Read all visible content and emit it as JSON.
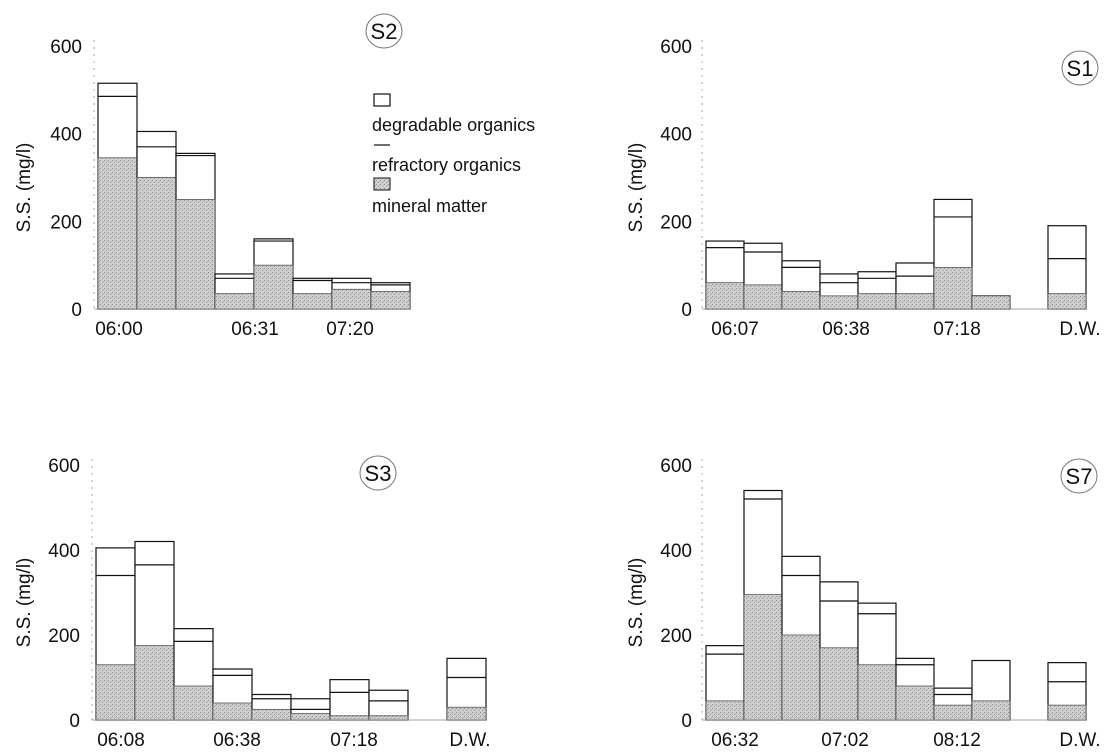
{
  "chart_data": [
    {
      "type": "bar",
      "stacked": true,
      "panel": "S2",
      "ylabel": "S.S. (mg/l)",
      "ylim": [
        0,
        600
      ],
      "yticks": [
        0,
        200,
        400,
        600
      ],
      "xticks": [
        "06:00",
        "06:31",
        "07:20"
      ],
      "series": [
        {
          "name": "mineral matter",
          "values": [
            345,
            300,
            250,
            35,
            100,
            35,
            45,
            40
          ]
        },
        {
          "name": "refractory organics",
          "values": [
            140,
            70,
            100,
            35,
            55,
            30,
            15,
            15
          ]
        },
        {
          "name": "degradable organics",
          "values": [
            30,
            35,
            5,
            10,
            5,
            5,
            10,
            5
          ]
        }
      ]
    },
    {
      "type": "bar",
      "stacked": true,
      "panel": "S1",
      "ylabel": "S.S. (mg/l)",
      "ylim": [
        0,
        600
      ],
      "yticks": [
        0,
        200,
        400,
        600
      ],
      "xticks": [
        "06:07",
        "06:38",
        "07:18",
        "D.W."
      ],
      "series": [
        {
          "name": "mineral matter",
          "values": [
            60,
            55,
            40,
            30,
            35,
            35,
            95,
            30,
            null,
            35
          ]
        },
        {
          "name": "refractory organics",
          "values": [
            80,
            75,
            55,
            30,
            35,
            40,
            115,
            0,
            null,
            80
          ]
        },
        {
          "name": "degradable organics",
          "values": [
            15,
            20,
            15,
            20,
            15,
            30,
            40,
            0,
            null,
            75
          ]
        }
      ]
    },
    {
      "type": "bar",
      "stacked": true,
      "panel": "S3",
      "ylabel": "S.S. (mg/l)",
      "ylim": [
        0,
        600
      ],
      "yticks": [
        0,
        200,
        400,
        600
      ],
      "xticks": [
        "06:08",
        "06:38",
        "07:18",
        "D.W."
      ],
      "series": [
        {
          "name": "mineral matter",
          "values": [
            130,
            175,
            80,
            40,
            25,
            15,
            10,
            10,
            null,
            30
          ]
        },
        {
          "name": "refractory organics",
          "values": [
            210,
            190,
            105,
            65,
            25,
            10,
            55,
            35,
            null,
            70
          ]
        },
        {
          "name": "degradable organics",
          "values": [
            65,
            55,
            30,
            15,
            10,
            25,
            30,
            25,
            null,
            45
          ]
        }
      ]
    },
    {
      "type": "bar",
      "stacked": true,
      "panel": "S7",
      "ylabel": "S.S. (mg/l)",
      "ylim": [
        0,
        600
      ],
      "yticks": [
        0,
        200,
        400,
        600
      ],
      "xticks": [
        "06:32",
        "07:02",
        "08:12",
        "D.W."
      ],
      "series": [
        {
          "name": "mineral matter",
          "values": [
            45,
            295,
            200,
            170,
            130,
            80,
            35,
            45,
            null,
            35
          ]
        },
        {
          "name": "refractory organics",
          "values": [
            110,
            225,
            140,
            110,
            120,
            50,
            25,
            95,
            null,
            55
          ]
        },
        {
          "name": "degradable organics",
          "values": [
            20,
            20,
            45,
            45,
            25,
            15,
            15,
            0,
            null,
            45
          ]
        }
      ]
    }
  ],
  "legend": {
    "items": [
      "degradable organics",
      "refractory organics",
      "mineral matter"
    ]
  }
}
